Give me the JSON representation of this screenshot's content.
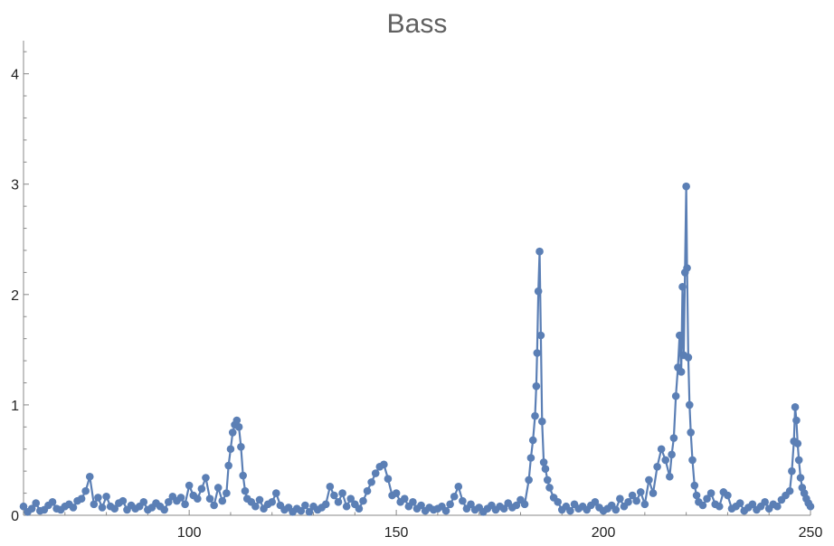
{
  "chart_data": {
    "type": "line",
    "title": "Bass",
    "xlabel": "",
    "ylabel": "",
    "xlim": [
      60,
      250
    ],
    "ylim": [
      0,
      4.3
    ],
    "x_ticks": [
      100,
      150,
      200,
      250
    ],
    "y_ticks": [
      0,
      1,
      2,
      3,
      4
    ],
    "grid": false,
    "markers": true,
    "colors": {
      "series": "#5b7fb5",
      "axis": "#888888",
      "title": "#606060"
    },
    "series": [
      {
        "values": [
          [
            60,
            0.08
          ],
          [
            61,
            0.03
          ],
          [
            62,
            0.06
          ],
          [
            63,
            0.11
          ],
          [
            64,
            0.04
          ],
          [
            65,
            0.05
          ],
          [
            66,
            0.09
          ],
          [
            67,
            0.12
          ],
          [
            68,
            0.06
          ],
          [
            69,
            0.05
          ],
          [
            70,
            0.08
          ],
          [
            71,
            0.1
          ],
          [
            72,
            0.07
          ],
          [
            73,
            0.13
          ],
          [
            74,
            0.15
          ],
          [
            75,
            0.22
          ],
          [
            76,
            0.35
          ],
          [
            77,
            0.1
          ],
          [
            78,
            0.16
          ],
          [
            79,
            0.07
          ],
          [
            80,
            0.17
          ],
          [
            81,
            0.08
          ],
          [
            82,
            0.06
          ],
          [
            83,
            0.11
          ],
          [
            84,
            0.13
          ],
          [
            85,
            0.05
          ],
          [
            86,
            0.09
          ],
          [
            87,
            0.06
          ],
          [
            88,
            0.08
          ],
          [
            89,
            0.12
          ],
          [
            90,
            0.05
          ],
          [
            91,
            0.07
          ],
          [
            92,
            0.11
          ],
          [
            93,
            0.08
          ],
          [
            94,
            0.05
          ],
          [
            95,
            0.12
          ],
          [
            96,
            0.17
          ],
          [
            97,
            0.13
          ],
          [
            98,
            0.16
          ],
          [
            99,
            0.1
          ],
          [
            100,
            0.27
          ],
          [
            101,
            0.18
          ],
          [
            102,
            0.15
          ],
          [
            103,
            0.24
          ],
          [
            104,
            0.34
          ],
          [
            105,
            0.15
          ],
          [
            106,
            0.09
          ],
          [
            107,
            0.25
          ],
          [
            108,
            0.13
          ],
          [
            109,
            0.2
          ],
          [
            109.5,
            0.45
          ],
          [
            110,
            0.6
          ],
          [
            110.5,
            0.75
          ],
          [
            111,
            0.82
          ],
          [
            111.5,
            0.86
          ],
          [
            112,
            0.8
          ],
          [
            112.5,
            0.62
          ],
          [
            113,
            0.36
          ],
          [
            113.5,
            0.22
          ],
          [
            114,
            0.15
          ],
          [
            115,
            0.12
          ],
          [
            116,
            0.08
          ],
          [
            117,
            0.14
          ],
          [
            118,
            0.06
          ],
          [
            119,
            0.1
          ],
          [
            120,
            0.12
          ],
          [
            121,
            0.2
          ],
          [
            122,
            0.09
          ],
          [
            123,
            0.05
          ],
          [
            124,
            0.07
          ],
          [
            125,
            0.03
          ],
          [
            126,
            0.06
          ],
          [
            127,
            0.04
          ],
          [
            128,
            0.09
          ],
          [
            129,
            0.03
          ],
          [
            130,
            0.08
          ],
          [
            131,
            0.05
          ],
          [
            132,
            0.07
          ],
          [
            133,
            0.1
          ],
          [
            134,
            0.26
          ],
          [
            135,
            0.18
          ],
          [
            136,
            0.12
          ],
          [
            137,
            0.2
          ],
          [
            138,
            0.08
          ],
          [
            139,
            0.15
          ],
          [
            140,
            0.1
          ],
          [
            141,
            0.06
          ],
          [
            142,
            0.13
          ],
          [
            143,
            0.22
          ],
          [
            144,
            0.3
          ],
          [
            145,
            0.38
          ],
          [
            146,
            0.44
          ],
          [
            147,
            0.46
          ],
          [
            148,
            0.33
          ],
          [
            149,
            0.18
          ],
          [
            150,
            0.2
          ],
          [
            151,
            0.12
          ],
          [
            152,
            0.15
          ],
          [
            153,
            0.08
          ],
          [
            154,
            0.12
          ],
          [
            155,
            0.06
          ],
          [
            156,
            0.09
          ],
          [
            157,
            0.04
          ],
          [
            158,
            0.07
          ],
          [
            159,
            0.05
          ],
          [
            160,
            0.06
          ],
          [
            161,
            0.08
          ],
          [
            162,
            0.04
          ],
          [
            163,
            0.1
          ],
          [
            164,
            0.17
          ],
          [
            165,
            0.26
          ],
          [
            166,
            0.13
          ],
          [
            167,
            0.06
          ],
          [
            168,
            0.1
          ],
          [
            169,
            0.05
          ],
          [
            170,
            0.07
          ],
          [
            171,
            0.03
          ],
          [
            172,
            0.06
          ],
          [
            173,
            0.09
          ],
          [
            174,
            0.05
          ],
          [
            175,
            0.08
          ],
          [
            176,
            0.06
          ],
          [
            177,
            0.11
          ],
          [
            178,
            0.07
          ],
          [
            179,
            0.09
          ],
          [
            180,
            0.14
          ],
          [
            181,
            0.1
          ],
          [
            182,
            0.32
          ],
          [
            182.5,
            0.52
          ],
          [
            183,
            0.68
          ],
          [
            183.5,
            0.9
          ],
          [
            183.8,
            1.17
          ],
          [
            184,
            1.47
          ],
          [
            184.3,
            2.03
          ],
          [
            184.6,
            2.39
          ],
          [
            184.9,
            1.63
          ],
          [
            185.2,
            0.85
          ],
          [
            185.6,
            0.48
          ],
          [
            186,
            0.42
          ],
          [
            186.5,
            0.32
          ],
          [
            187,
            0.25
          ],
          [
            188,
            0.16
          ],
          [
            189,
            0.12
          ],
          [
            190,
            0.05
          ],
          [
            191,
            0.08
          ],
          [
            192,
            0.04
          ],
          [
            193,
            0.1
          ],
          [
            194,
            0.06
          ],
          [
            195,
            0.08
          ],
          [
            196,
            0.05
          ],
          [
            197,
            0.09
          ],
          [
            198,
            0.12
          ],
          [
            199,
            0.07
          ],
          [
            200,
            0.04
          ],
          [
            201,
            0.06
          ],
          [
            202,
            0.09
          ],
          [
            203,
            0.05
          ],
          [
            204,
            0.15
          ],
          [
            205,
            0.08
          ],
          [
            206,
            0.12
          ],
          [
            207,
            0.18
          ],
          [
            208,
            0.13
          ],
          [
            209,
            0.21
          ],
          [
            210,
            0.1
          ],
          [
            211,
            0.32
          ],
          [
            212,
            0.2
          ],
          [
            213,
            0.44
          ],
          [
            214,
            0.6
          ],
          [
            215,
            0.5
          ],
          [
            216,
            0.35
          ],
          [
            216.5,
            0.55
          ],
          [
            217,
            0.7
          ],
          [
            217.5,
            1.08
          ],
          [
            218,
            1.34
          ],
          [
            218.4,
            1.63
          ],
          [
            218.8,
            1.3
          ],
          [
            219.1,
            2.07
          ],
          [
            219.4,
            1.45
          ],
          [
            219.7,
            2.2
          ],
          [
            220,
            2.98
          ],
          [
            220.2,
            2.24
          ],
          [
            220.5,
            1.43
          ],
          [
            220.8,
            1.0
          ],
          [
            221.1,
            0.75
          ],
          [
            221.5,
            0.5
          ],
          [
            222,
            0.27
          ],
          [
            222.5,
            0.18
          ],
          [
            223,
            0.12
          ],
          [
            224,
            0.09
          ],
          [
            225,
            0.15
          ],
          [
            226,
            0.2
          ],
          [
            227,
            0.1
          ],
          [
            228,
            0.08
          ],
          [
            229,
            0.21
          ],
          [
            230,
            0.18
          ],
          [
            231,
            0.06
          ],
          [
            232,
            0.08
          ],
          [
            233,
            0.11
          ],
          [
            234,
            0.04
          ],
          [
            235,
            0.07
          ],
          [
            236,
            0.1
          ],
          [
            237,
            0.05
          ],
          [
            238,
            0.08
          ],
          [
            239,
            0.12
          ],
          [
            240,
            0.06
          ],
          [
            241,
            0.1
          ],
          [
            242,
            0.08
          ],
          [
            243,
            0.14
          ],
          [
            244,
            0.18
          ],
          [
            245,
            0.22
          ],
          [
            245.5,
            0.4
          ],
          [
            246,
            0.67
          ],
          [
            246.3,
            0.98
          ],
          [
            246.6,
            0.86
          ],
          [
            246.9,
            0.65
          ],
          [
            247.2,
            0.5
          ],
          [
            247.6,
            0.34
          ],
          [
            248,
            0.25
          ],
          [
            248.5,
            0.2
          ],
          [
            249,
            0.15
          ],
          [
            249.5,
            0.11
          ],
          [
            250,
            0.08
          ]
        ]
      }
    ]
  }
}
